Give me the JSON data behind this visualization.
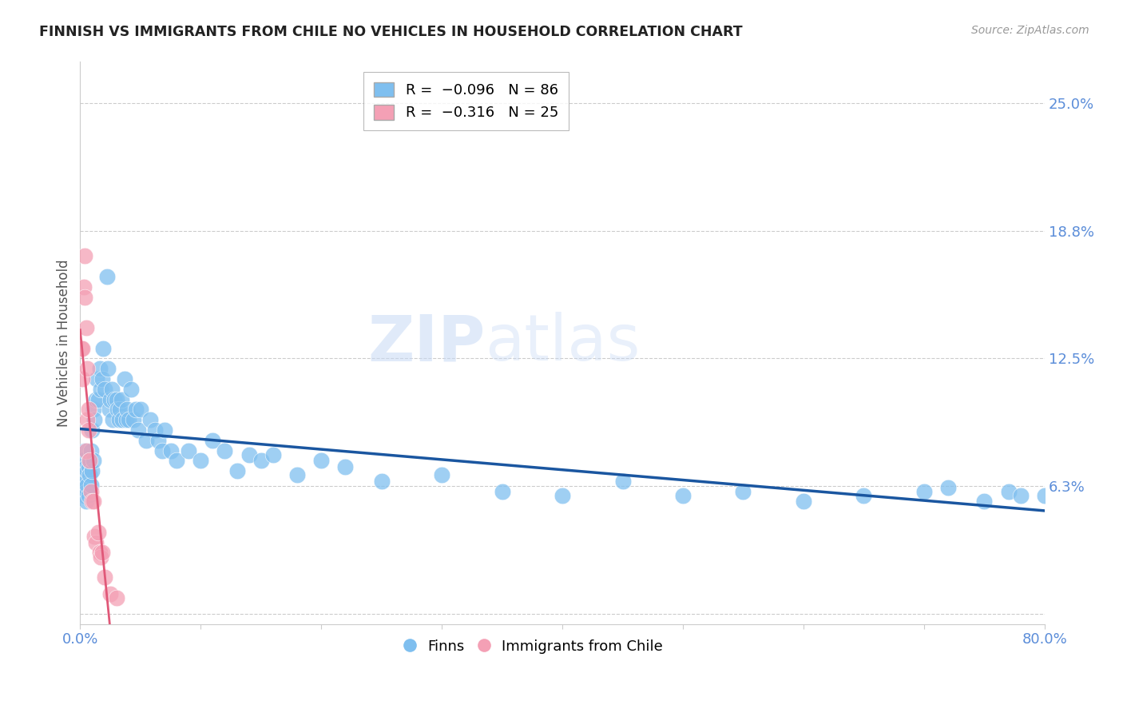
{
  "title": "FINNISH VS IMMIGRANTS FROM CHILE NO VEHICLES IN HOUSEHOLD CORRELATION CHART",
  "source": "Source: ZipAtlas.com",
  "ylabel": "No Vehicles in Household",
  "watermark": "ZIPatlas",
  "xlim": [
    0.0,
    0.8
  ],
  "ylim": [
    -0.005,
    0.27
  ],
  "yticks": [
    0.0,
    0.0625,
    0.125,
    0.1875,
    0.25
  ],
  "ytick_labels": [
    "",
    "6.3%",
    "12.5%",
    "18.8%",
    "25.0%"
  ],
  "xtick_vals": [
    0.0,
    0.1,
    0.2,
    0.3,
    0.4,
    0.5,
    0.6,
    0.7,
    0.8
  ],
  "xtick_labels": [
    "0.0%",
    "",
    "",
    "",
    "",
    "",
    "",
    "",
    "80.0%"
  ],
  "finns_color": "#7fbfef",
  "chile_color": "#f4a0b5",
  "finns_line_color": "#1a56a0",
  "chile_line_color": "#e05878",
  "tick_color": "#5b8dd9",
  "grid_color": "#cccccc",
  "finns_R": -0.096,
  "finns_N": 86,
  "chile_R": -0.316,
  "chile_N": 25,
  "finns_x": [
    0.002,
    0.003,
    0.003,
    0.004,
    0.004,
    0.005,
    0.005,
    0.005,
    0.005,
    0.006,
    0.006,
    0.007,
    0.007,
    0.008,
    0.008,
    0.009,
    0.009,
    0.01,
    0.01,
    0.011,
    0.011,
    0.012,
    0.013,
    0.014,
    0.015,
    0.016,
    0.017,
    0.018,
    0.019,
    0.02,
    0.022,
    0.023,
    0.024,
    0.025,
    0.026,
    0.027,
    0.028,
    0.03,
    0.031,
    0.032,
    0.033,
    0.034,
    0.035,
    0.037,
    0.038,
    0.039,
    0.04,
    0.042,
    0.044,
    0.046,
    0.048,
    0.05,
    0.055,
    0.058,
    0.062,
    0.065,
    0.068,
    0.07,
    0.075,
    0.08,
    0.09,
    0.1,
    0.11,
    0.12,
    0.13,
    0.14,
    0.15,
    0.16,
    0.18,
    0.2,
    0.22,
    0.25,
    0.3,
    0.35,
    0.4,
    0.45,
    0.5,
    0.55,
    0.6,
    0.65,
    0.7,
    0.72,
    0.75,
    0.77,
    0.78,
    0.8
  ],
  "finns_y": [
    0.075,
    0.068,
    0.063,
    0.08,
    0.058,
    0.072,
    0.065,
    0.06,
    0.055,
    0.07,
    0.063,
    0.072,
    0.058,
    0.068,
    0.075,
    0.08,
    0.063,
    0.09,
    0.07,
    0.075,
    0.1,
    0.095,
    0.105,
    0.115,
    0.105,
    0.12,
    0.11,
    0.115,
    0.13,
    0.11,
    0.165,
    0.12,
    0.1,
    0.105,
    0.11,
    0.095,
    0.105,
    0.105,
    0.1,
    0.095,
    0.1,
    0.105,
    0.095,
    0.115,
    0.095,
    0.1,
    0.095,
    0.11,
    0.095,
    0.1,
    0.09,
    0.1,
    0.085,
    0.095,
    0.09,
    0.085,
    0.08,
    0.09,
    0.08,
    0.075,
    0.08,
    0.075,
    0.085,
    0.08,
    0.07,
    0.078,
    0.075,
    0.078,
    0.068,
    0.075,
    0.072,
    0.065,
    0.068,
    0.06,
    0.058,
    0.065,
    0.058,
    0.06,
    0.055,
    0.058,
    0.06,
    0.062,
    0.055,
    0.06,
    0.058,
    0.058
  ],
  "chile_x": [
    0.001,
    0.002,
    0.002,
    0.003,
    0.004,
    0.004,
    0.005,
    0.005,
    0.006,
    0.006,
    0.007,
    0.007,
    0.008,
    0.009,
    0.01,
    0.011,
    0.012,
    0.013,
    0.015,
    0.016,
    0.017,
    0.018,
    0.02,
    0.025,
    0.03
  ],
  "chile_y": [
    0.13,
    0.115,
    0.13,
    0.16,
    0.175,
    0.155,
    0.14,
    0.08,
    0.12,
    0.095,
    0.1,
    0.09,
    0.075,
    0.06,
    0.055,
    0.055,
    0.038,
    0.035,
    0.04,
    0.03,
    0.028,
    0.03,
    0.018,
    0.01,
    0.008
  ]
}
